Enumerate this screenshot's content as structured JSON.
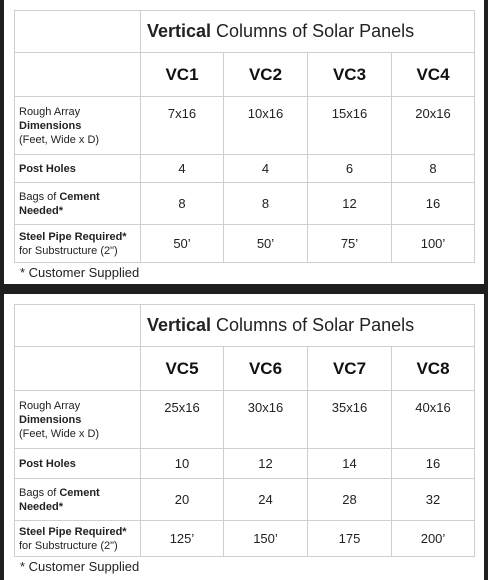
{
  "tables": [
    {
      "title_bold": "Vertical",
      "title_rest": " Columns of Solar Panels",
      "columns": [
        "VC1",
        "VC2",
        "VC3",
        "VC4"
      ],
      "rows": {
        "dimensions": {
          "label_line1": "Rough Array",
          "label_bold": "Dimensions",
          "label_line3": "(Feet, Wide x D)",
          "values": [
            "7x16",
            "10x16",
            "15x16",
            "20x16"
          ]
        },
        "post_holes": {
          "label_bold": "Post Holes",
          "values": [
            "4",
            "4",
            "6",
            "8"
          ]
        },
        "cement": {
          "label_pre": "Bags of ",
          "label_bold1": "Cement",
          "label_bold2": "Needed*",
          "values": [
            "8",
            "8",
            "12",
            "16"
          ]
        },
        "steel_pipe": {
          "label_bold": "Steel Pipe Required*",
          "label_line2": "for Substructure (2\")",
          "values": [
            "50’",
            "50’",
            "75’",
            "100’"
          ]
        }
      },
      "footnote": "* Customer Supplied"
    },
    {
      "title_bold": "Vertical",
      "title_rest": " Columns of Solar Panels",
      "columns": [
        "VC5",
        "VC6",
        "VC7",
        "VC8"
      ],
      "rows": {
        "dimensions": {
          "label_line1": "Rough Array",
          "label_bold": "Dimensions",
          "label_line3": "(Feet, Wide x D)",
          "values": [
            "25x16",
            "30x16",
            "35x16",
            "40x16"
          ]
        },
        "post_holes": {
          "label_bold": "Post Holes",
          "values": [
            "10",
            "12",
            "14",
            "16"
          ]
        },
        "cement": {
          "label_pre": "Bags of ",
          "label_bold1": "Cement",
          "label_bold2": "Needed*",
          "values": [
            "20",
            "24",
            "28",
            "32"
          ]
        },
        "steel_pipe": {
          "label_bold": "Steel Pipe Required*",
          "label_line2": "for Substructure (2\")",
          "values": [
            "125’",
            "150’",
            "175",
            "200’"
          ]
        }
      },
      "footnote": "* Customer Supplied"
    }
  ]
}
